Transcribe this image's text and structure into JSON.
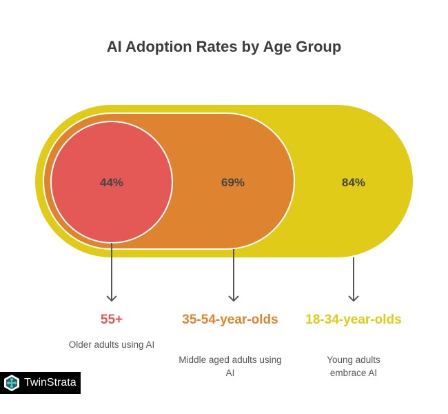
{
  "title": "AI Adoption Rates by Age Group",
  "colors": {
    "older": "#e45856",
    "middle": "#de8431",
    "young": "#dfcb18",
    "text": "#444444"
  },
  "groups": [
    {
      "value": "44%",
      "label": "55+",
      "description": "Older adults using AI"
    },
    {
      "value": "69%",
      "label": "35-54-year-olds",
      "description": "Middle aged adults using AI"
    },
    {
      "value": "84%",
      "label": "18-34-year-olds",
      "description": "Young adults embrace AI"
    }
  ],
  "logo": {
    "text": "TwinStrata",
    "icon": "network-hex-icon"
  }
}
